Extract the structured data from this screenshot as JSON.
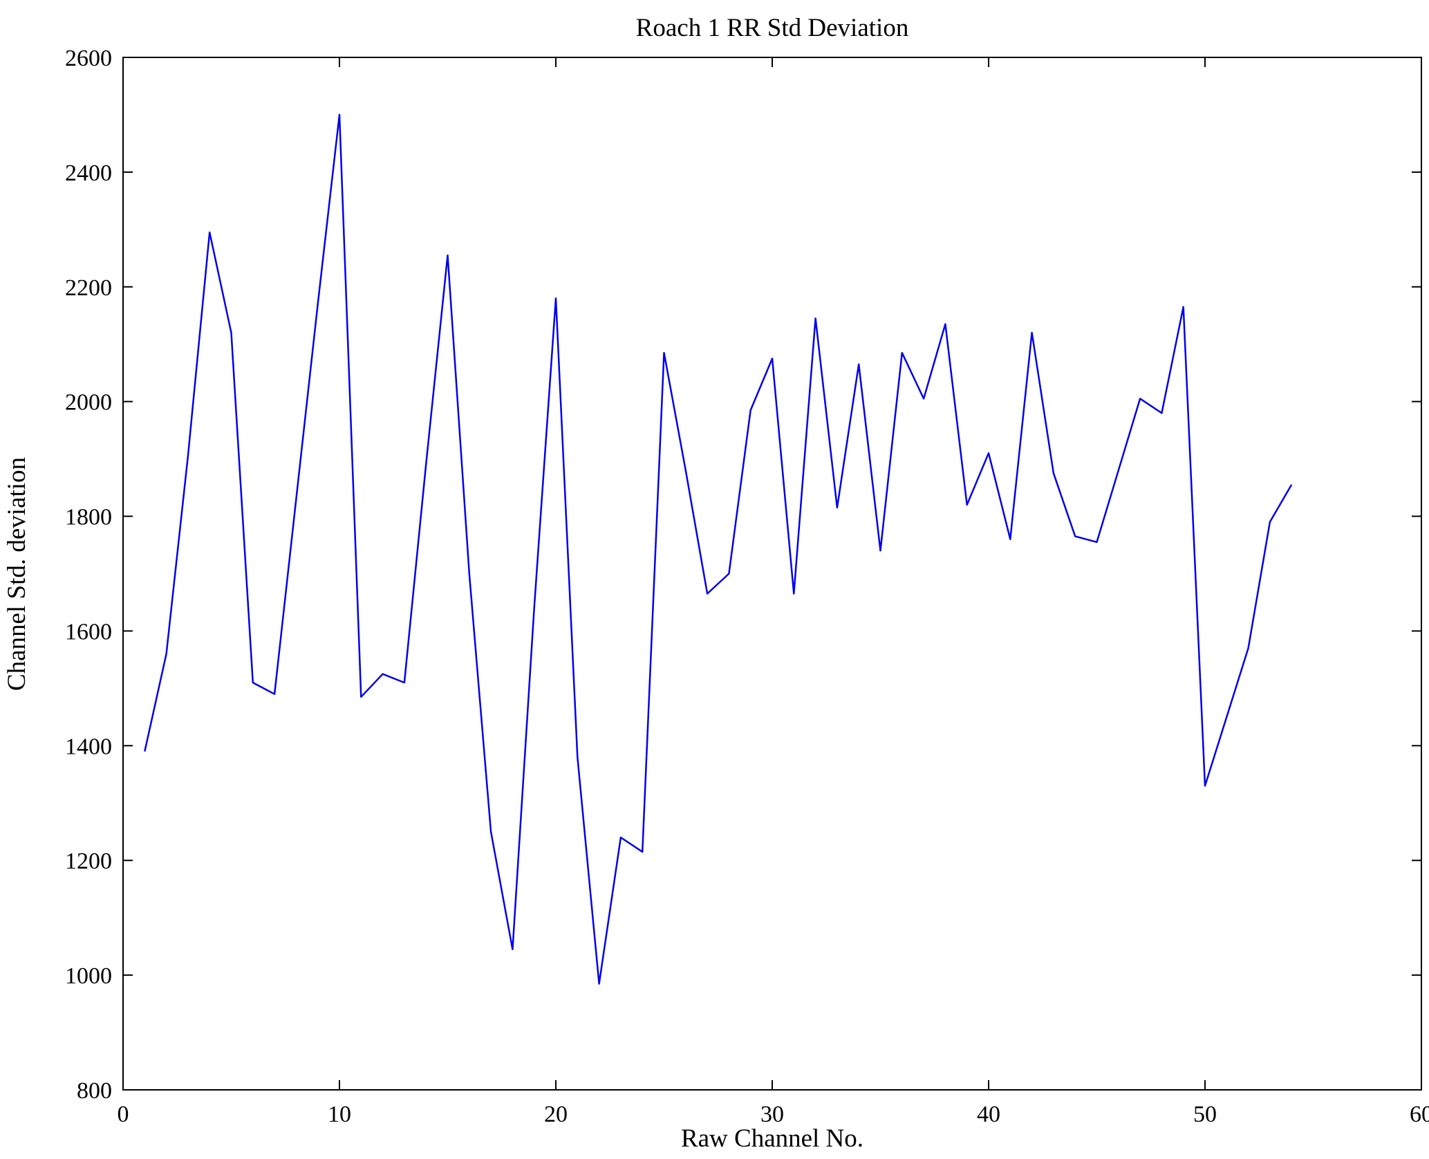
{
  "figure": {
    "title": "Roach 1 RR Std Deviation",
    "xlabel": "Raw Channel No.",
    "ylabel": "Channel Std. deviation"
  },
  "chart_data": {
    "type": "line",
    "title": "Roach 1 RR Std Deviation",
    "xlabel": "Raw Channel No.",
    "ylabel": "Channel Std. deviation",
    "xlim": [
      0,
      60
    ],
    "ylim": [
      800,
      2600
    ],
    "xticks": [
      0,
      10,
      20,
      30,
      40,
      50,
      60
    ],
    "yticks": [
      800,
      1000,
      1200,
      1400,
      1600,
      1800,
      2000,
      2200,
      2400,
      2600
    ],
    "grid": false,
    "legend_position": "none",
    "line_color": "#0000ee",
    "axis_color": "#000000",
    "series_name": "Channel Std. deviation",
    "x": [
      1,
      2,
      3,
      4,
      5,
      6,
      7,
      8,
      9,
      10,
      11,
      12,
      13,
      14,
      15,
      16,
      17,
      18,
      19,
      20,
      21,
      22,
      23,
      24,
      25,
      26,
      27,
      28,
      29,
      30,
      31,
      32,
      33,
      34,
      35,
      36,
      37,
      38,
      39,
      40,
      41,
      42,
      43,
      44,
      45,
      46,
      47,
      48,
      49,
      50,
      51,
      52,
      53,
      54
    ],
    "y": [
      1390,
      1560,
      1905,
      2295,
      2120,
      1510,
      1490,
      1830,
      2170,
      2500,
      1485,
      1525,
      1510,
      1890,
      2255,
      1700,
      1250,
      1045,
      1640,
      2180,
      1380,
      985,
      1240,
      1215,
      2085,
      1880,
      1665,
      1700,
      1985,
      2075,
      1665,
      2145,
      1815,
      2065,
      1740,
      2085,
      2005,
      2135,
      1820,
      1910,
      1760,
      2120,
      1875,
      1765,
      1755,
      1880,
      2005,
      1980,
      2165,
      1330,
      1450,
      1570,
      1790,
      1855
    ]
  }
}
